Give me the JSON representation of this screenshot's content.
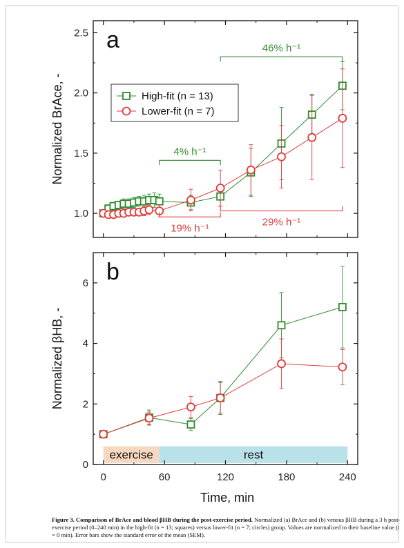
{
  "colors": {
    "high_fit": "#2e8b2e",
    "lower_fit": "#e03a3a",
    "exercise_band": "#f6d8c0",
    "rest_band": "#b9e1ea"
  },
  "legend": {
    "high_fit_label": "High-fit (n = 13)",
    "lower_fit_label": "Lower-fit (n = 7)"
  },
  "shared_x": {
    "label": "Time, min",
    "ticks": [
      0,
      60,
      120,
      180,
      240
    ],
    "range": [
      -10,
      250
    ]
  },
  "chart_data": [
    {
      "type": "line",
      "panel_label": "a",
      "ylabel": "Normalized BrAce, -",
      "xlabel": "",
      "ylim": [
        0.8,
        2.6
      ],
      "yticks": [
        "1.0",
        "1.5",
        "2.0",
        "2.5"
      ],
      "yticks_values": [
        1.0,
        1.5,
        2.0,
        2.5
      ],
      "legend_position": "upper-left",
      "series": [
        {
          "name": "High-fit (n = 13)",
          "marker": "square",
          "color": "#2e8b2e",
          "x": [
            0,
            5,
            10,
            15,
            20,
            25,
            30,
            35,
            40,
            45,
            50,
            55,
            86,
            115,
            145,
            175,
            205,
            235
          ],
          "y": [
            1.0,
            1.04,
            1.06,
            1.07,
            1.08,
            1.08,
            1.09,
            1.1,
            1.1,
            1.11,
            1.11,
            1.1,
            1.09,
            1.14,
            1.34,
            1.58,
            1.82,
            2.06
          ],
          "err": [
            0.02,
            0.03,
            0.03,
            0.03,
            0.04,
            0.04,
            0.04,
            0.04,
            0.05,
            0.05,
            0.06,
            0.06,
            0.06,
            0.08,
            0.2,
            0.3,
            0.17,
            0.2
          ]
        },
        {
          "name": "Lower-fit (n = 7)",
          "marker": "circle",
          "color": "#e03a3a",
          "x": [
            0,
            5,
            10,
            15,
            20,
            25,
            30,
            35,
            40,
            45,
            55,
            86,
            115,
            145,
            175,
            205,
            235
          ],
          "y": [
            1.0,
            0.99,
            0.99,
            1.0,
            1.0,
            1.01,
            1.01,
            1.01,
            1.02,
            1.03,
            1.02,
            1.11,
            1.21,
            1.36,
            1.47,
            1.63,
            1.79
          ],
          "err": [
            0.02,
            0.02,
            0.02,
            0.02,
            0.02,
            0.03,
            0.03,
            0.03,
            0.04,
            0.04,
            0.05,
            0.09,
            0.15,
            0.21,
            0.26,
            0.35,
            0.41
          ]
        }
      ],
      "annotations": [
        {
          "text": "46% h⁻¹",
          "color": "#2e8b2e",
          "x_from": 115,
          "x_to": 235,
          "y": 2.3,
          "direction": "up"
        },
        {
          "text": "4% h⁻¹",
          "color": "#2e8b2e",
          "x_from": 55,
          "x_to": 115,
          "y": 1.44,
          "direction": "up"
        },
        {
          "text": "19% h⁻¹",
          "color": "#e03a3a",
          "x_from": 55,
          "x_to": 115,
          "y": 0.97,
          "direction": "down"
        },
        {
          "text": "29% h⁻¹",
          "color": "#e03a3a",
          "x_from": 115,
          "x_to": 235,
          "y": 1.02,
          "direction": "down"
        }
      ]
    },
    {
      "type": "line",
      "panel_label": "b",
      "ylabel": "Normalized βHB, -",
      "xlabel": "Time, min",
      "ylim": [
        0,
        7
      ],
      "yticks": [
        "0",
        "2",
        "4",
        "6"
      ],
      "yticks_values": [
        0,
        2,
        4,
        6
      ],
      "series": [
        {
          "name": "High-fit (n = 13)",
          "marker": "square",
          "color": "#2e8b2e",
          "x": [
            0,
            45,
            86,
            115,
            175,
            235
          ],
          "y": [
            1.0,
            1.55,
            1.32,
            2.2,
            4.6,
            5.2
          ],
          "err": [
            0.05,
            0.25,
            0.2,
            0.55,
            1.08,
            1.35
          ]
        },
        {
          "name": "Lower-fit (n = 7)",
          "marker": "circle",
          "color": "#e03a3a",
          "x": [
            0,
            45,
            86,
            115,
            175,
            235
          ],
          "y": [
            1.0,
            1.53,
            1.9,
            2.2,
            3.33,
            3.22
          ],
          "err": [
            0.05,
            0.2,
            0.35,
            0.5,
            0.82,
            0.58
          ]
        }
      ],
      "bands": [
        {
          "label": "exercise",
          "x_from": 0,
          "x_to": 55,
          "color": "#f6d8c0"
        },
        {
          "label": "rest",
          "x_from": 55,
          "x_to": 240,
          "color": "#b9e1ea"
        }
      ]
    }
  ],
  "caption": {
    "title": "Figure 3. Comparison of BrAce and blood βHB during the post-exercise period.",
    "body": " Normalized (a) BrAce and (b) venous βHB during a 3 h post-exercise period (0–240 min) in the high-fit (n = 13; squares) versus lower-fit (n = 7; circles) group. Values are normalized to their baseline value (t = 0 min). Error bars show the standard error of the mean (SEM)."
  }
}
